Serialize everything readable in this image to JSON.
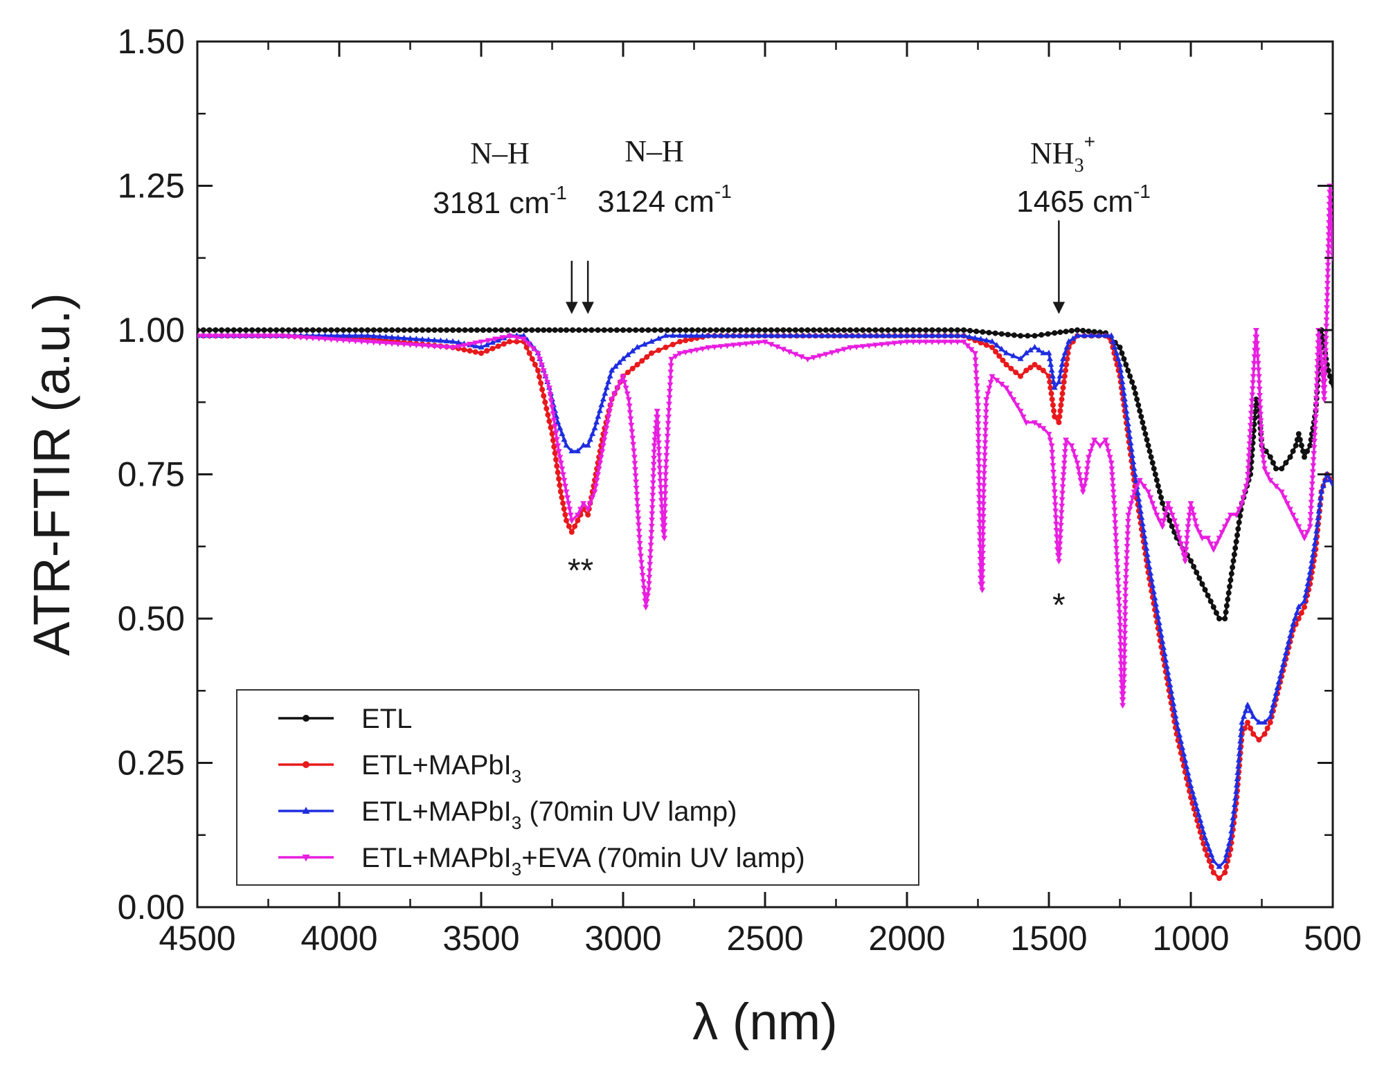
{
  "chart_data": {
    "type": "line",
    "xlabel": "λ (nm)",
    "ylabel": "ATR-FTIR (a.u.)",
    "xlim": [
      4500,
      500
    ],
    "ylim": [
      0,
      1.5
    ],
    "x_ticks": [
      4500,
      4000,
      3500,
      3000,
      2500,
      2000,
      1500,
      1000,
      500
    ],
    "x_tick_labels": [
      "4500",
      "4000",
      "3500",
      "3000",
      "2500",
      "2000",
      "1500",
      "1000",
      "500"
    ],
    "y_ticks": [
      0,
      0.25,
      0.5,
      0.75,
      1.0,
      1.25,
      1.5
    ],
    "y_tick_labels": [
      "0.00",
      "0.25",
      "0.50",
      "0.75",
      "1.00",
      "1.25",
      "1.50"
    ],
    "grid": false,
    "legend_position": "bottom-left",
    "annotations": [
      {
        "id": "nh1",
        "label": "N–H",
        "value": "3181 cm",
        "exp": "-1",
        "arrow_x": 3181,
        "arrow_from_y": 1.12,
        "arrow_to_y": 1.03
      },
      {
        "id": "nh2",
        "label": "N–H",
        "value": "3124 cm",
        "exp": "-1",
        "arrow_x": 3124,
        "arrow_from_y": 1.12,
        "arrow_to_y": 1.03
      },
      {
        "id": "nh3",
        "label": "NH",
        "label_sub": "3",
        "label_sup": "+",
        "value": "1465 cm",
        "exp": "-1",
        "arrow_x": 1465,
        "arrow_from_y": 1.19,
        "arrow_to_y": 1.03
      }
    ],
    "markers": [
      {
        "text": "**",
        "x": 3150,
        "y": 0.6
      },
      {
        "text": "*",
        "x": 1465,
        "y": 0.54
      }
    ],
    "series": [
      {
        "name": "ETL",
        "legend_parts": [
          "ETL"
        ],
        "color": "#111111",
        "x": [
          4500,
          4200,
          3900,
          3600,
          3300,
          3200,
          3000,
          2800,
          2500,
          2200,
          2000,
          1800,
          1600,
          1550,
          1480,
          1400,
          1300,
          1250,
          1200,
          1150,
          1100,
          1050,
          1000,
          950,
          920,
          900,
          880,
          850,
          820,
          790,
          770,
          760,
          750,
          720,
          700,
          680,
          650,
          630,
          620,
          600,
          580,
          560,
          540,
          520,
          500
        ],
        "y": [
          1.0,
          1.0,
          1.0,
          1.0,
          1.0,
          1.0,
          1.0,
          1.0,
          1.0,
          1.0,
          1.0,
          1.0,
          0.99,
          0.99,
          0.995,
          1.0,
          0.995,
          0.97,
          0.9,
          0.8,
          0.7,
          0.64,
          0.6,
          0.55,
          0.52,
          0.5,
          0.5,
          0.6,
          0.7,
          0.75,
          0.88,
          0.86,
          0.8,
          0.78,
          0.76,
          0.76,
          0.78,
          0.8,
          0.82,
          0.78,
          0.8,
          0.86,
          1.0,
          0.94,
          0.9
        ]
      },
      {
        "name": "ETL+MAPbI3",
        "legend_parts": [
          "ETL+MAPbI",
          "3",
          ""
        ],
        "color": "#e8191c",
        "x": [
          4500,
          4200,
          3900,
          3600,
          3500,
          3400,
          3350,
          3300,
          3250,
          3220,
          3200,
          3181,
          3160,
          3140,
          3124,
          3100,
          3070,
          3040,
          3000,
          2950,
          2900,
          2850,
          2800,
          2700,
          2500,
          2300,
          2000,
          1800,
          1700,
          1650,
          1600,
          1580,
          1550,
          1520,
          1500,
          1480,
          1465,
          1450,
          1430,
          1400,
          1350,
          1300,
          1280,
          1250,
          1230,
          1200,
          1150,
          1100,
          1050,
          1000,
          950,
          920,
          900,
          880,
          860,
          840,
          820,
          800,
          780,
          760,
          740,
          720,
          700,
          680,
          660,
          640,
          620,
          600,
          580,
          560,
          540,
          520,
          500
        ],
        "y": [
          0.99,
          0.99,
          0.985,
          0.97,
          0.96,
          0.98,
          0.98,
          0.93,
          0.82,
          0.72,
          0.67,
          0.65,
          0.67,
          0.69,
          0.68,
          0.74,
          0.82,
          0.88,
          0.92,
          0.94,
          0.96,
          0.97,
          0.98,
          0.99,
          0.99,
          0.99,
          0.99,
          0.99,
          0.97,
          0.94,
          0.92,
          0.93,
          0.94,
          0.93,
          0.92,
          0.85,
          0.84,
          0.9,
          0.97,
          0.99,
          0.99,
          0.99,
          0.98,
          0.92,
          0.85,
          0.74,
          0.58,
          0.44,
          0.3,
          0.19,
          0.1,
          0.06,
          0.05,
          0.06,
          0.1,
          0.18,
          0.3,
          0.32,
          0.3,
          0.29,
          0.3,
          0.32,
          0.36,
          0.4,
          0.44,
          0.48,
          0.5,
          0.52,
          0.56,
          0.62,
          0.72,
          0.75,
          0.74
        ]
      },
      {
        "name": "ETL+MAPbI3 (70min UV lamp)",
        "legend_parts": [
          "ETL+MAPbI",
          "3",
          " (70min UV lamp)"
        ],
        "color": "#1f2de0",
        "x": [
          4500,
          4200,
          3900,
          3600,
          3500,
          3400,
          3350,
          3300,
          3260,
          3230,
          3200,
          3181,
          3160,
          3140,
          3124,
          3100,
          3070,
          3040,
          3000,
          2950,
          2900,
          2850,
          2800,
          2700,
          2500,
          2300,
          2000,
          1800,
          1700,
          1650,
          1600,
          1580,
          1550,
          1520,
          1500,
          1480,
          1465,
          1450,
          1430,
          1400,
          1350,
          1300,
          1280,
          1250,
          1230,
          1200,
          1150,
          1100,
          1050,
          1000,
          950,
          920,
          900,
          880,
          860,
          840,
          820,
          800,
          780,
          760,
          740,
          720,
          700,
          680,
          660,
          640,
          620,
          600,
          580,
          560,
          540,
          520,
          500
        ],
        "y": [
          0.99,
          0.99,
          0.99,
          0.98,
          0.97,
          0.99,
          0.99,
          0.96,
          0.9,
          0.84,
          0.8,
          0.79,
          0.79,
          0.8,
          0.8,
          0.83,
          0.88,
          0.93,
          0.95,
          0.97,
          0.98,
          0.99,
          0.99,
          0.99,
          0.99,
          0.99,
          0.99,
          0.99,
          0.98,
          0.96,
          0.95,
          0.96,
          0.97,
          0.96,
          0.96,
          0.9,
          0.91,
          0.95,
          0.98,
          0.99,
          0.99,
          0.99,
          0.99,
          0.94,
          0.87,
          0.76,
          0.6,
          0.46,
          0.32,
          0.21,
          0.12,
          0.08,
          0.07,
          0.08,
          0.12,
          0.2,
          0.32,
          0.35,
          0.33,
          0.32,
          0.32,
          0.33,
          0.37,
          0.41,
          0.45,
          0.49,
          0.52,
          0.53,
          0.58,
          0.64,
          0.72,
          0.75,
          0.73
        ]
      },
      {
        "name": "ETL+MAPbI3+EVA (70min UV lamp)",
        "legend_parts": [
          "ETL+MAPbI",
          "3",
          "+EVA (70min UV lamp)"
        ],
        "color": "#e81ee0",
        "x": [
          4500,
          4200,
          3900,
          3600,
          3500,
          3450,
          3400,
          3350,
          3300,
          3260,
          3230,
          3200,
          3181,
          3160,
          3140,
          3124,
          3100,
          3070,
          3040,
          3000,
          2980,
          2960,
          2940,
          2920,
          2910,
          2900,
          2890,
          2880,
          2870,
          2860,
          2855,
          2850,
          2840,
          2830,
          2800,
          2700,
          2500,
          2350,
          2200,
          2000,
          1800,
          1760,
          1750,
          1745,
          1740,
          1735,
          1730,
          1720,
          1700,
          1650,
          1600,
          1580,
          1550,
          1520,
          1500,
          1490,
          1480,
          1470,
          1465,
          1460,
          1450,
          1440,
          1420,
          1400,
          1380,
          1370,
          1360,
          1340,
          1320,
          1300,
          1280,
          1270,
          1260,
          1250,
          1245,
          1240,
          1235,
          1230,
          1220,
          1200,
          1180,
          1150,
          1120,
          1100,
          1080,
          1050,
          1030,
          1020,
          1010,
          1000,
          990,
          980,
          960,
          940,
          920,
          900,
          880,
          860,
          840,
          820,
          800,
          780,
          770,
          760,
          750,
          740,
          720,
          700,
          680,
          660,
          640,
          620,
          600,
          580,
          560,
          550,
          540,
          530,
          520,
          510,
          500
        ],
        "y": [
          0.99,
          0.99,
          0.98,
          0.97,
          0.98,
          0.985,
          0.99,
          0.985,
          0.96,
          0.9,
          0.8,
          0.72,
          0.67,
          0.68,
          0.7,
          0.69,
          0.72,
          0.8,
          0.88,
          0.92,
          0.88,
          0.78,
          0.62,
          0.52,
          0.55,
          0.65,
          0.8,
          0.86,
          0.75,
          0.66,
          0.64,
          0.75,
          0.85,
          0.95,
          0.96,
          0.97,
          0.98,
          0.95,
          0.97,
          0.98,
          0.98,
          0.96,
          0.87,
          0.7,
          0.56,
          0.55,
          0.72,
          0.88,
          0.92,
          0.9,
          0.86,
          0.84,
          0.84,
          0.83,
          0.82,
          0.8,
          0.72,
          0.62,
          0.6,
          0.64,
          0.74,
          0.81,
          0.8,
          0.77,
          0.72,
          0.74,
          0.78,
          0.81,
          0.8,
          0.81,
          0.77,
          0.7,
          0.6,
          0.5,
          0.4,
          0.35,
          0.4,
          0.55,
          0.68,
          0.72,
          0.74,
          0.72,
          0.68,
          0.66,
          0.7,
          0.66,
          0.62,
          0.6,
          0.66,
          0.7,
          0.68,
          0.66,
          0.64,
          0.64,
          0.62,
          0.64,
          0.66,
          0.68,
          0.68,
          0.7,
          0.74,
          0.92,
          1.0,
          0.92,
          0.8,
          0.76,
          0.74,
          0.73,
          0.72,
          0.7,
          0.68,
          0.66,
          0.64,
          0.66,
          0.85,
          1.0,
          0.95,
          0.88,
          1.05,
          1.25,
          1.12
        ]
      }
    ]
  }
}
